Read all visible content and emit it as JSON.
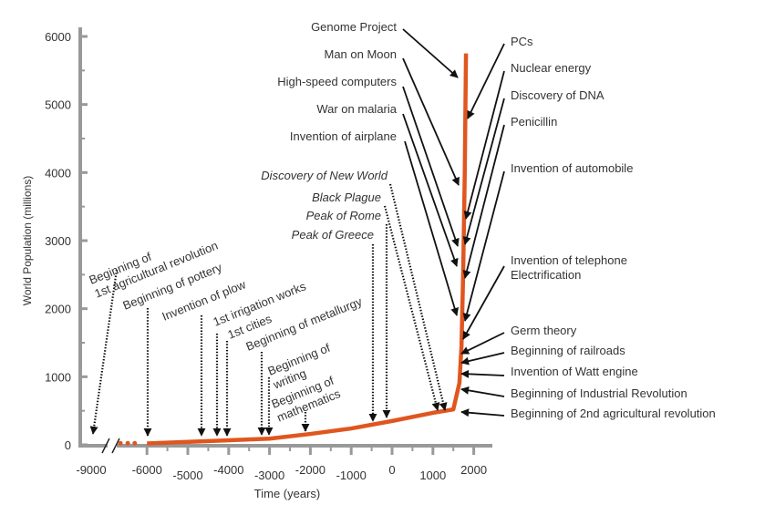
{
  "chart_data": {
    "type": "line",
    "title": "",
    "xlabel": "Time (years)",
    "ylabel": "World Population (millions)",
    "xlim": [
      -6000,
      2000
    ],
    "ylim": [
      0,
      6000
    ],
    "x_ticks": [
      "-9000",
      "-6000",
      "-5000",
      "-4000",
      "-3000",
      "-2000",
      "-1000",
      "0",
      "1000",
      "2000"
    ],
    "y_ticks": [
      "0",
      "1000",
      "2000",
      "3000",
      "4000",
      "5000",
      "6000"
    ],
    "grid": false,
    "series": [
      {
        "name": "World population",
        "color": "#e0561f",
        "prehistoric_dots": [
          [
            -6650,
            10
          ],
          [
            -6470,
            10
          ],
          [
            -6300,
            10
          ]
        ],
        "points": [
          [
            -6000,
            20
          ],
          [
            -3000,
            90
          ],
          [
            -2000,
            160
          ],
          [
            -1000,
            240
          ],
          [
            0,
            350
          ],
          [
            1000,
            470
          ],
          [
            1500,
            520
          ],
          [
            1650,
            910
          ],
          [
            1700,
            1450
          ],
          [
            1740,
            2500
          ],
          [
            1780,
            4000
          ],
          [
            1810,
            5750
          ]
        ]
      }
    ],
    "annotations": [
      {
        "lines": [
          "Beginning of",
          "1st agricultural revolution"
        ],
        "style": "dotted"
      },
      {
        "lines": [
          "Beginning of pottery"
        ],
        "style": "dotted"
      },
      {
        "lines": [
          "Invention of plow"
        ],
        "style": "dotted"
      },
      {
        "lines": [
          "1st irrigation works"
        ],
        "style": "dotted"
      },
      {
        "lines": [
          "1st cities"
        ],
        "style": "dotted"
      },
      {
        "lines": [
          "Beginning of metallurgy"
        ],
        "style": "dotted"
      },
      {
        "lines": [
          "Beginning of",
          "writing"
        ],
        "style": "dotted"
      },
      {
        "lines": [
          "Beginning of",
          "mathematics"
        ],
        "style": "dotted"
      },
      {
        "lines": [
          "Peak of Greece"
        ],
        "style": "dotted"
      },
      {
        "lines": [
          "Peak of Rome"
        ],
        "style": "dotted"
      },
      {
        "lines": [
          "Black Plague"
        ],
        "style": "dotted"
      },
      {
        "lines": [
          "Discovery of New World"
        ],
        "style": "dotted"
      },
      {
        "lines": [
          "Genome Project"
        ],
        "style": "solid"
      },
      {
        "lines": [
          "Man on Moon"
        ],
        "style": "solid"
      },
      {
        "lines": [
          "High-speed computers"
        ],
        "style": "solid"
      },
      {
        "lines": [
          "War on malaria"
        ],
        "style": "solid"
      },
      {
        "lines": [
          "Invention of airplane"
        ],
        "style": "solid"
      },
      {
        "lines": [
          "PCs"
        ],
        "style": "solid"
      },
      {
        "lines": [
          "Nuclear energy"
        ],
        "style": "solid"
      },
      {
        "lines": [
          "Discovery of DNA"
        ],
        "style": "solid"
      },
      {
        "lines": [
          "Penicillin"
        ],
        "style": "solid"
      },
      {
        "lines": [
          "Invention of automobile"
        ],
        "style": "solid"
      },
      {
        "lines": [
          "Invention of telephone",
          "Electrification"
        ],
        "style": "solid"
      },
      {
        "lines": [
          "Germ theory"
        ],
        "style": "solid"
      },
      {
        "lines": [
          "Beginning of railroads"
        ],
        "style": "solid"
      },
      {
        "lines": [
          "Invention of Watt engine"
        ],
        "style": "solid"
      },
      {
        "lines": [
          "Beginning of Industrial Revolution"
        ],
        "style": "solid"
      },
      {
        "lines": [
          "Beginning of 2nd agricultural revolution"
        ],
        "style": "solid"
      }
    ]
  }
}
